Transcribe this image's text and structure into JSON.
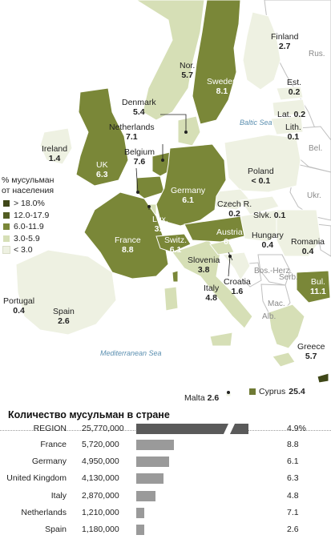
{
  "colors": {
    "tier_gt18": "#3f4718",
    "tier_12_17": "#525d22",
    "tier_6_11": "#7a8738",
    "tier_3_5": "#d6dfb6",
    "tier_lt3": "#eef1e2",
    "nodata": "#ffffff",
    "sea": "#ffffff",
    "border": "#ffffff",
    "region_bar": "#5a5a5a",
    "bar": "#9a9a9a"
  },
  "legend": {
    "title_line1": "% мусульман",
    "title_line2": "от населения",
    "items": [
      {
        "label": "> 18.0%"
      },
      {
        "label": "12.0-17.9"
      },
      {
        "label": "6.0-11.9"
      },
      {
        "label": "3.0-5.9"
      },
      {
        "label": "< 3.0"
      }
    ]
  },
  "countries": [
    {
      "name": "Finland",
      "value": "2.7",
      "tier": "tier_lt3"
    },
    {
      "name": "Rus.",
      "value": "",
      "tier": "nodata"
    },
    {
      "name": "Nor.",
      "value": "5.7",
      "tier": "tier_3_5"
    },
    {
      "name": "Sweden",
      "value": "8.1",
      "tier": "tier_6_11"
    },
    {
      "name": "Est.",
      "value": "0.2",
      "tier": "tier_lt3"
    },
    {
      "name": "Denmark",
      "value": "5.4",
      "tier": "tier_3_5"
    },
    {
      "name": "Lat.",
      "value": "0.2",
      "tier": "tier_lt3"
    },
    {
      "name": "Lith.",
      "value": "0.1",
      "tier": "tier_lt3"
    },
    {
      "name": "Netherlands",
      "value": "7.1",
      "tier": "tier_6_11"
    },
    {
      "name": "Ireland",
      "value": "1.4",
      "tier": "tier_lt3"
    },
    {
      "name": "Bel.",
      "value": "",
      "tier": "nodata"
    },
    {
      "name": "Belgium",
      "value": "7.6",
      "tier": "tier_6_11"
    },
    {
      "name": "UK",
      "value": "6.3",
      "tier": "tier_6_11"
    },
    {
      "name": "Poland",
      "value": "< 0.1",
      "tier": "tier_lt3"
    },
    {
      "name": "Germany",
      "value": "6.1",
      "tier": "tier_6_11"
    },
    {
      "name": "Ukr.",
      "value": "",
      "tier": "nodata"
    },
    {
      "name": "Czech R.",
      "value": "0.2",
      "tier": "tier_lt3"
    },
    {
      "name": "Slvk.",
      "value": "0.1",
      "tier": "tier_lt3"
    },
    {
      "name": "Lux.",
      "value": "3.2",
      "tier": "tier_3_5"
    },
    {
      "name": "Austria",
      "value": "6.9",
      "tier": "tier_6_11"
    },
    {
      "name": "Hungary",
      "value": "0.4",
      "tier": "tier_lt3"
    },
    {
      "name": "Romania",
      "value": "0.4",
      "tier": "tier_lt3"
    },
    {
      "name": "France",
      "value": "8.8",
      "tier": "tier_6_11"
    },
    {
      "name": "Switz.",
      "value": "6.1",
      "tier": "tier_6_11"
    },
    {
      "name": "Slovenia",
      "value": "3.8",
      "tier": "tier_3_5"
    },
    {
      "name": "Croatia",
      "value": "1.6",
      "tier": "tier_lt3"
    },
    {
      "name": "Bos.-Herz.",
      "value": "",
      "tier": "nodata"
    },
    {
      "name": "Serb.",
      "value": "",
      "tier": "nodata"
    },
    {
      "name": "Italy",
      "value": "4.8",
      "tier": "tier_3_5"
    },
    {
      "name": "Bul.",
      "value": "11.1",
      "tier": "tier_6_11"
    },
    {
      "name": "Portugal",
      "value": "0.4",
      "tier": "tier_lt3"
    },
    {
      "name": "Spain",
      "value": "2.6",
      "tier": "tier_lt3"
    },
    {
      "name": "Mac.",
      "value": "",
      "tier": "nodata"
    },
    {
      "name": "Alb.",
      "value": "",
      "tier": "nodata"
    },
    {
      "name": "Greece",
      "value": "5.7",
      "tier": "tier_3_5"
    },
    {
      "name": "Malta",
      "value": "2.6",
      "tier": "tier_lt3"
    },
    {
      "name": "Cyprus",
      "value": "25.4",
      "tier": "tier_gt18"
    }
  ],
  "seas": {
    "baltic": "Baltic Sea",
    "mediterranean": "Mediterranean Sea"
  },
  "table": {
    "title": "Количество мусульман в стране",
    "rows": [
      {
        "name": "REGION",
        "count": "25,770,000",
        "value": 25770000,
        "pct": "4.9%",
        "broken_bar": true
      },
      {
        "name": "France",
        "count": "5,720,000",
        "value": 5720000,
        "pct": "8.8"
      },
      {
        "name": "Germany",
        "count": "4,950,000",
        "value": 4950000,
        "pct": "6.1"
      },
      {
        "name": "United Kingdom",
        "count": "4,130,000",
        "value": 4130000,
        "pct": "6.3"
      },
      {
        "name": "Italy",
        "count": "2,870,000",
        "value": 2870000,
        "pct": "4.8"
      },
      {
        "name": "Netherlands",
        "count": "1,210,000",
        "value": 1210000,
        "pct": "7.1"
      },
      {
        "name": "Spain",
        "count": "1,180,000",
        "value": 1180000,
        "pct": "2.6"
      }
    ]
  }
}
